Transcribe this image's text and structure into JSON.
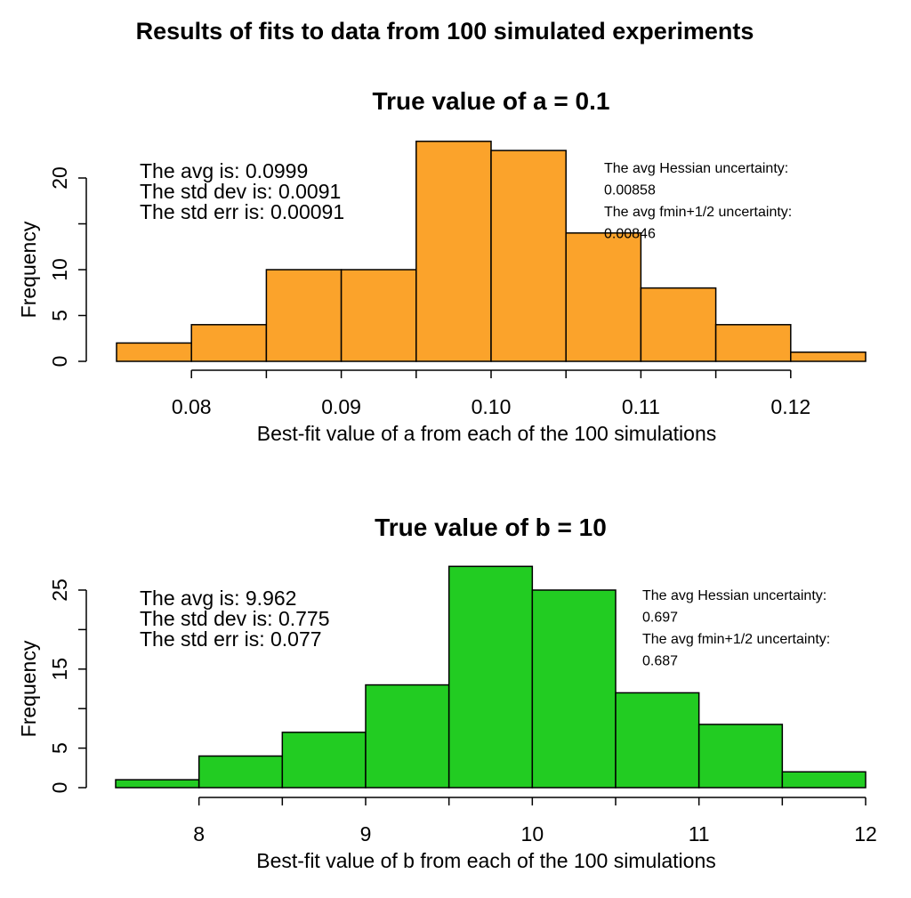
{
  "title": "Results of fits to data from 100 simulated experiments",
  "chart_data": [
    {
      "type": "bar",
      "title": "True value of a = 0.1",
      "xlabel": "Best-fit value of a from each of the 100 simulations",
      "ylabel": "Frequency",
      "bin_edges": [
        0.075,
        0.08,
        0.085,
        0.09,
        0.095,
        0.1,
        0.105,
        0.11,
        0.115,
        0.12,
        0.125
      ],
      "values": [
        2,
        4,
        10,
        10,
        24,
        23,
        14,
        8,
        4,
        1
      ],
      "xticks": [
        0.08,
        0.09,
        0.1,
        0.11,
        0.12
      ],
      "xtick_labels": [
        "0.08",
        "0.09",
        "0.10",
        "0.11",
        "0.12"
      ],
      "xtick_minor": [
        0.085,
        0.095,
        0.105,
        0.115
      ],
      "yticks": [
        0,
        5,
        10,
        15,
        20
      ],
      "ytick_labels": [
        "0",
        "5",
        "10",
        "",
        "20"
      ],
      "xlim": [
        0.075,
        0.125
      ],
      "ylim": [
        0,
        24
      ],
      "color": "#FBA32B",
      "stats": [
        "The avg is: 0.0999",
        "The std dev is: 0.0091",
        "The std err is: 0.00091"
      ],
      "notes": [
        "The avg Hessian uncertainty:",
        " 0.00858",
        "The avg fmin+1/2 uncertainty:",
        " 0.00846"
      ]
    },
    {
      "type": "bar",
      "title": "True value of b = 10",
      "xlabel": "Best-fit value of b from each of the 100 simulations",
      "ylabel": "Frequency",
      "bin_edges": [
        7.5,
        8,
        8.5,
        9,
        9.5,
        10,
        10.5,
        11,
        11.5,
        12
      ],
      "values": [
        1,
        4,
        7,
        13,
        28,
        25,
        12,
        8,
        2
      ],
      "xticks": [
        8,
        9,
        10,
        11,
        12
      ],
      "xtick_labels": [
        "8",
        "9",
        "10",
        "11",
        "12"
      ],
      "xtick_minor": [
        8.5,
        9.5,
        10.5,
        11.5
      ],
      "yticks": [
        0,
        5,
        10,
        15,
        20,
        25
      ],
      "ytick_labels": [
        "0",
        "5",
        "",
        "15",
        "",
        "25"
      ],
      "xlim": [
        7.5,
        12
      ],
      "ylim": [
        0,
        28
      ],
      "color": "#22CC22",
      "stats": [
        "The avg is: 9.962",
        "The std dev is: 0.775",
        "The std err is: 0.077"
      ],
      "notes": [
        "The avg Hessian uncertainty:",
        " 0.697",
        "The avg fmin+1/2 uncertainty:",
        " 0.687"
      ]
    }
  ]
}
